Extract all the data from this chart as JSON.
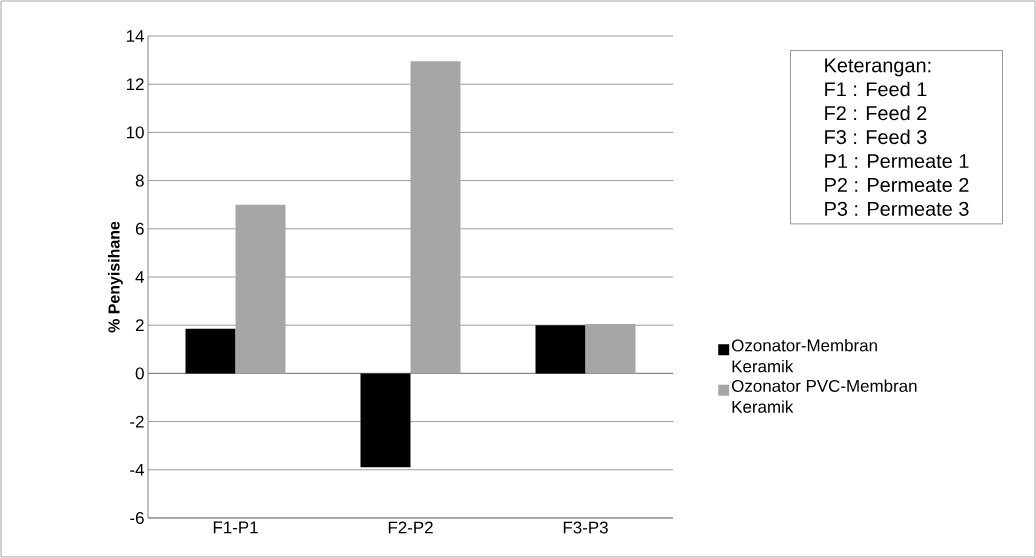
{
  "chart_data": {
    "type": "bar",
    "ylabel": "% Penyisihane",
    "categories": [
      "F1-P1",
      "F2-P2",
      "F3-P3"
    ],
    "series": [
      {
        "name": "Ozonator-Membran Keramik",
        "color": "#000000",
        "values": [
          1.85,
          -3.9,
          2.0
        ]
      },
      {
        "name": "Ozonator PVC-Membran Keramik",
        "color": "#a6a6a6",
        "values": [
          7.0,
          12.95,
          2.05
        ]
      }
    ],
    "ylim": [
      -6,
      14
    ],
    "yticks": [
      -6,
      -4,
      -2,
      0,
      2,
      4,
      6,
      8,
      10,
      12,
      14
    ],
    "grid": "y",
    "legend": "right",
    "annotations": [
      "Keterangan:",
      "F1 : Feed 1",
      "F2 : Feed 2",
      "F3 : Feed 3",
      "P1 : Permeate 1",
      "P2 : Permeate 2",
      "P3 : Permeate 3"
    ]
  }
}
